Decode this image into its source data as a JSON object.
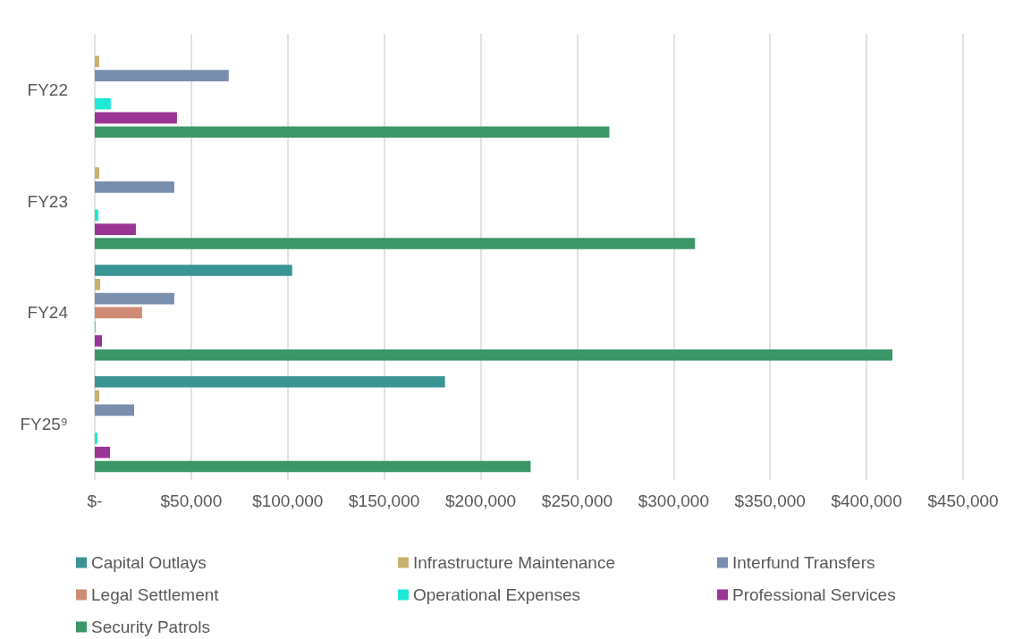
{
  "chart_data": {
    "type": "bar",
    "orientation": "horizontal",
    "categories": [
      "FY22",
      "FY23",
      "FY24",
      "FY25⁹"
    ],
    "series": [
      {
        "name": "Capital Outlays",
        "color": "#3a9494",
        "values": [
          null,
          null,
          102300,
          181500
        ]
      },
      {
        "name": "Infrastructure Maintenance",
        "color": "#c8b16e",
        "values": [
          2300,
          2300,
          2800,
          2300
        ]
      },
      {
        "name": "Interfund Transfers",
        "color": "#7a8ead",
        "values": [
          69400,
          41200,
          41200,
          20400
        ]
      },
      {
        "name": "Legal Settlement",
        "color": "#d08b77",
        "values": [
          null,
          null,
          24500,
          null
        ]
      },
      {
        "name": "Operational Expenses",
        "color": "#1ee8d6",
        "values": [
          8300,
          1900,
          500,
          1400
        ]
      },
      {
        "name": "Professional Services",
        "color": "#9b3594",
        "values": [
          42600,
          21300,
          3700,
          7900
        ]
      },
      {
        "name": "Security Patrols",
        "color": "#3b9668",
        "values": [
          266700,
          311100,
          413400,
          225900
        ]
      }
    ],
    "xlim": [
      0,
      450000
    ],
    "xticks": [
      {
        "value": 0,
        "label": "$-"
      },
      {
        "value": 50000,
        "label": "$50,000"
      },
      {
        "value": 100000,
        "label": "$100,000"
      },
      {
        "value": 150000,
        "label": "$150,000"
      },
      {
        "value": 200000,
        "label": "$200,000"
      },
      {
        "value": 250000,
        "label": "$250,000"
      },
      {
        "value": 300000,
        "label": "$300,000"
      },
      {
        "value": 350000,
        "label": "$350,000"
      },
      {
        "value": 400000,
        "label": "$400,000"
      },
      {
        "value": 450000,
        "label": "$450,000"
      }
    ],
    "grid": "x",
    "legend": "bottom"
  }
}
